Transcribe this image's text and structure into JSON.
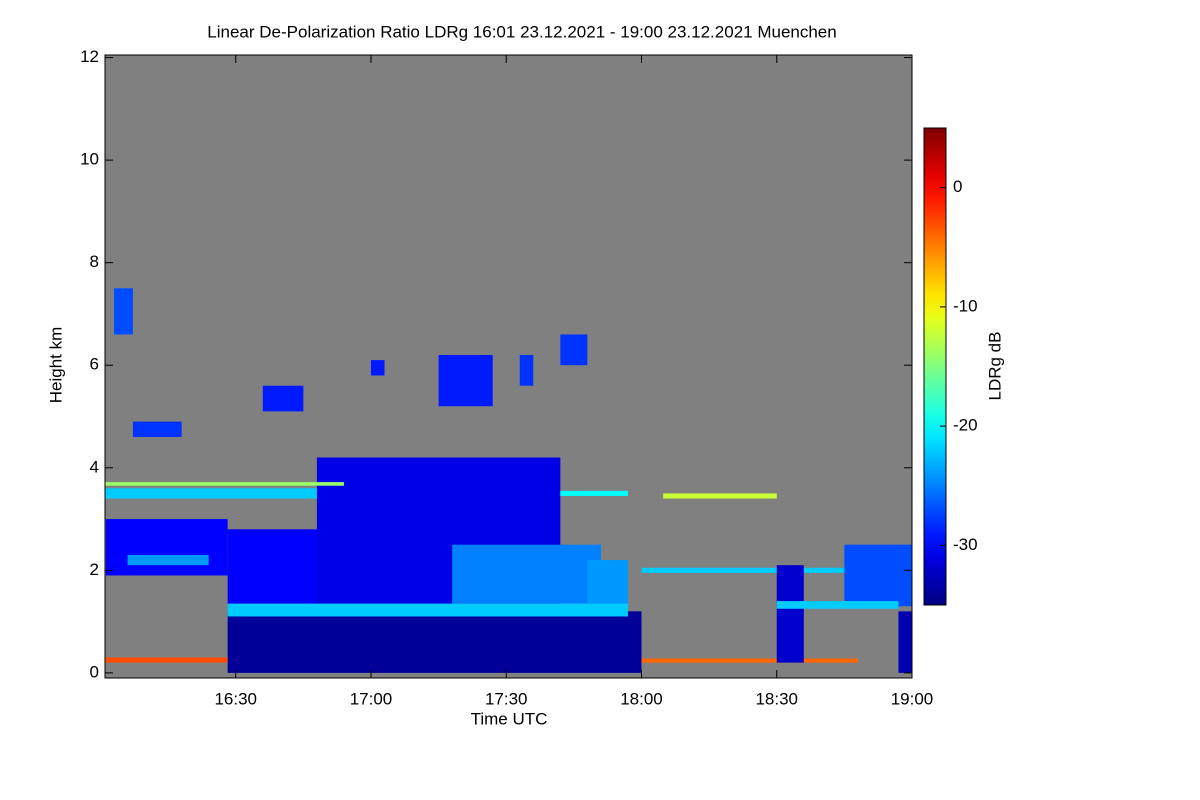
{
  "chart_data": {
    "type": "heatmap",
    "title": "Linear De-Polarization Ratio LDRg   16:01 23.12.2021 - 19:00 23.12.2021 Muenchen",
    "x_label": "Time UTC",
    "y_label": "Height km",
    "colorbar_label": "LDRg dB",
    "xlim": [
      16.0167,
      19.0
    ],
    "ylim": [
      -0.1,
      12.05
    ],
    "xticks": [
      {
        "value": 16.5,
        "label": "16:30"
      },
      {
        "value": 17.0,
        "label": "17:00"
      },
      {
        "value": 17.5,
        "label": "17:30"
      },
      {
        "value": 18.0,
        "label": "18:00"
      },
      {
        "value": 18.5,
        "label": "18:30"
      },
      {
        "value": 19.0,
        "label": "19:00"
      }
    ],
    "yticks": [
      0,
      2,
      4,
      6,
      8,
      10,
      12
    ],
    "clim": [
      -35,
      5
    ],
    "cticks": [
      0,
      -10,
      -20,
      -30
    ],
    "colormap": "jet",
    "background": "#808080",
    "cells": [
      [
        16.47,
        18.0,
        0,
        1.2,
        -34
      ],
      [
        16.47,
        17.3,
        1.35,
        2.8,
        -30
      ],
      [
        16.8,
        17.7,
        1.35,
        4.2,
        -31
      ],
      [
        17.3,
        17.85,
        1.35,
        2.5,
        -25
      ],
      [
        17.8,
        17.95,
        1.3,
        2.2,
        -24
      ],
      [
        16.47,
        17.95,
        1.1,
        1.35,
        -22
      ],
      [
        16.02,
        16.47,
        1.9,
        3.0,
        -30
      ],
      [
        16.1,
        16.4,
        2.1,
        2.3,
        -24
      ],
      [
        16.0167,
        16.8,
        3.4,
        3.6,
        -22
      ],
      [
        16.0167,
        16.9,
        3.65,
        3.72,
        -14
      ],
      [
        17.7,
        17.95,
        3.45,
        3.55,
        -20
      ],
      [
        18.08,
        18.5,
        3.4,
        3.5,
        -12
      ],
      [
        18.0,
        18.8,
        1.95,
        2.05,
        -22
      ],
      [
        16.05,
        16.12,
        6.6,
        7.5,
        -27
      ],
      [
        16.12,
        16.3,
        4.6,
        4.9,
        -28
      ],
      [
        16.6,
        16.75,
        5.1,
        5.6,
        -29
      ],
      [
        17.0,
        17.05,
        5.8,
        6.1,
        -29
      ],
      [
        17.25,
        17.45,
        5.2,
        6.2,
        -29
      ],
      [
        17.55,
        17.6,
        5.6,
        6.2,
        -28
      ],
      [
        17.7,
        17.8,
        6.0,
        6.6,
        -28
      ],
      [
        16.0167,
        16.47,
        0.2,
        0.3,
        -3
      ],
      [
        18.0,
        18.8,
        0.2,
        0.28,
        -4
      ],
      [
        18.5,
        18.6,
        0.2,
        2.1,
        -32
      ],
      [
        18.75,
        19.0,
        1.3,
        2.5,
        -27
      ],
      [
        18.5,
        18.95,
        1.25,
        1.4,
        -22
      ],
      [
        18.95,
        19.0,
        0,
        1.2,
        -33
      ]
    ]
  }
}
